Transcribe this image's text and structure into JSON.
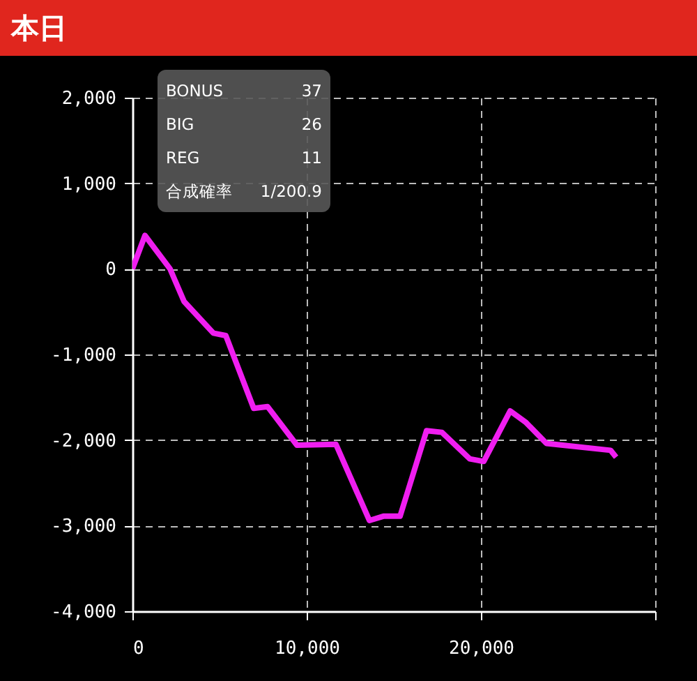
{
  "chart_data": {
    "type": "line",
    "title": "本日",
    "annotations": [
      "BONUS 37",
      "BIG 26",
      "REG 11",
      "合成確率 1/200.9"
    ],
    "x": [
      0,
      720,
      2160,
      2960,
      4640,
      5360,
      6960,
      7760,
      9440,
      11680,
      13600,
      14400,
      15360,
      16880,
      17760,
      19360,
      20160,
      21680,
      22560,
      23760,
      27440,
      27760
    ],
    "series": [
      {
        "color": "#f01ef0",
        "values": [
          0,
          390,
          0,
          -380,
          -750,
          -780,
          -1630,
          -1610,
          -2060,
          -2050,
          -2940,
          -2890,
          -2890,
          -1890,
          -1910,
          -2220,
          -2250,
          -1660,
          -1790,
          -2040,
          -2120,
          -2200
        ]
      }
    ],
    "xlim": [
      0,
      30000
    ],
    "xticks": [
      0,
      {
        "value": 10000,
        "label": "10,000"
      },
      {
        "value": 20000,
        "label": "20,000"
      },
      {
        "value": 30000,
        "label": null
      }
    ],
    "ylim": [
      -4000,
      2000
    ],
    "yticks": [
      {
        "value": -4000,
        "label": "-4,000"
      },
      {
        "value": -3000,
        "label": "-3,000"
      },
      {
        "value": -2000,
        "label": "-2,000"
      },
      {
        "value": -1000,
        "label": "-1,000"
      },
      0,
      {
        "value": 1000,
        "label": "1,000"
      },
      {
        "value": 2000,
        "label": "2,000"
      }
    ],
    "grid": true,
    "legend": false,
    "marker": "none",
    "line_style": "solid"
  }
}
